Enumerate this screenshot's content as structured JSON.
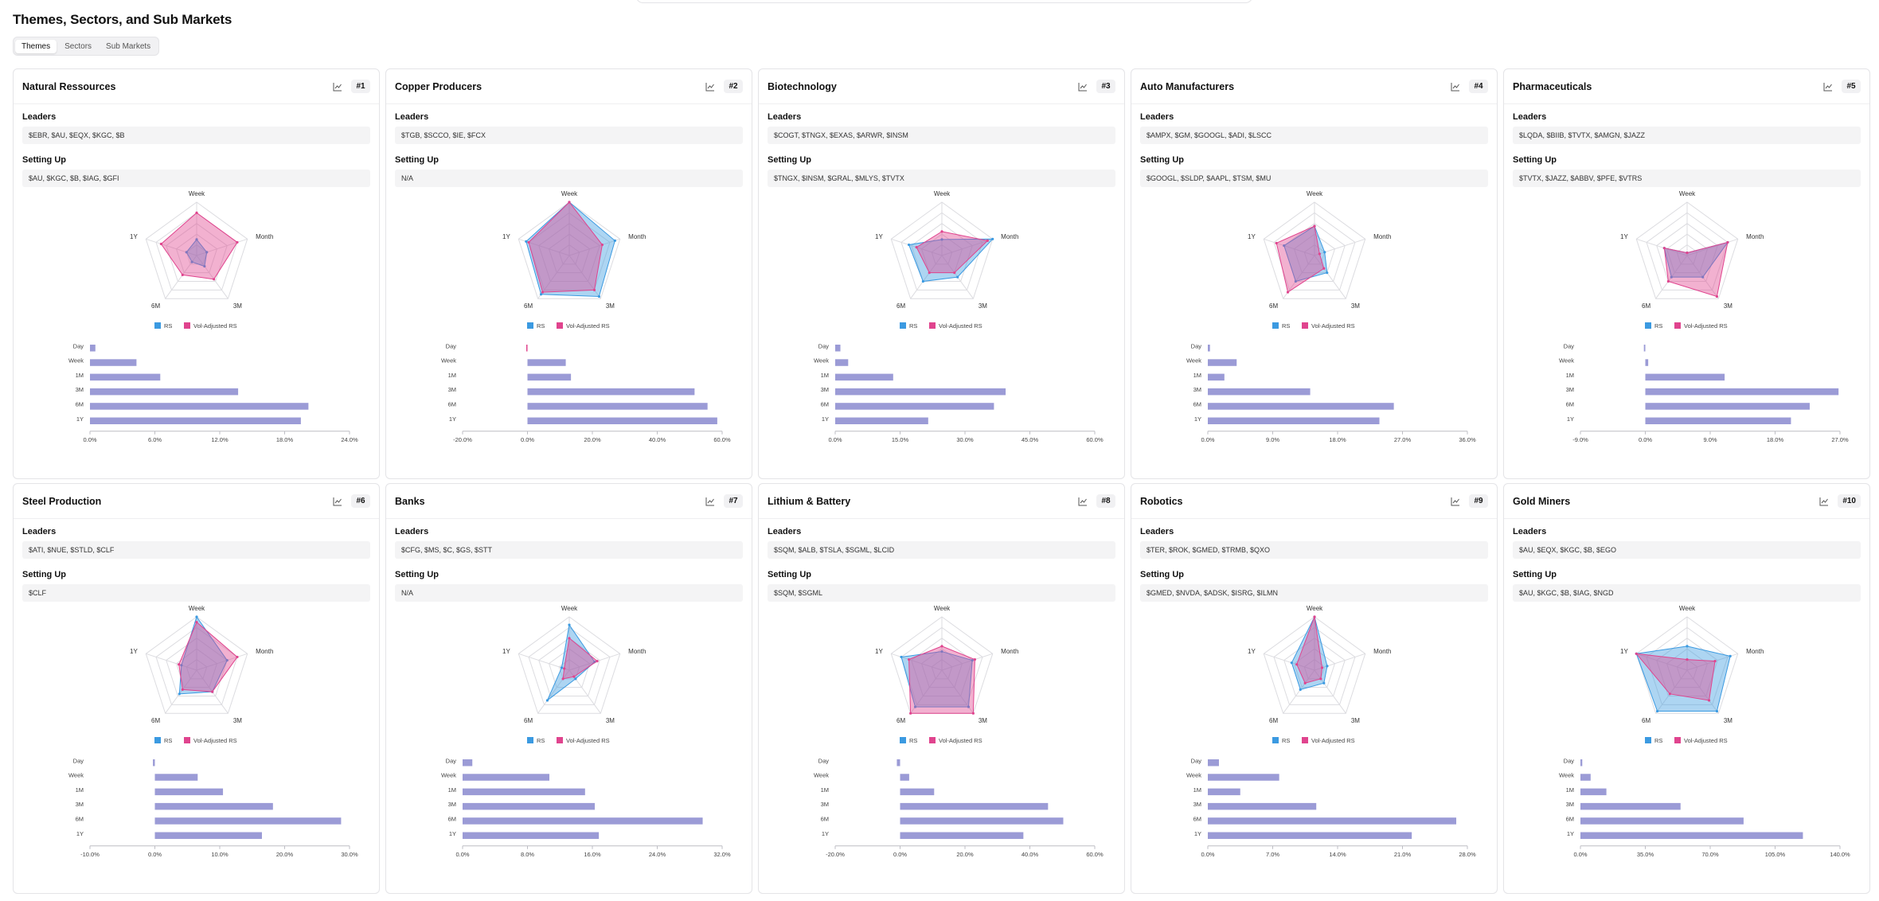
{
  "page": {
    "title": "Themes, Sectors, and Sub Markets"
  },
  "tabs": [
    {
      "label": "Themes",
      "active": true
    },
    {
      "label": "Sectors",
      "active": false
    },
    {
      "label": "Sub Markets",
      "active": false
    }
  ],
  "labels": {
    "leaders": "Leaders",
    "setting_up": "Setting Up"
  },
  "colors": {
    "rs": "#3b9ae1",
    "vol_rs": "#e0448e",
    "bar": "#9b9bd6"
  },
  "radar_axes": [
    "Week",
    "Month",
    "3M",
    "6M",
    "1Y"
  ],
  "legend": {
    "rs": "RS",
    "vol_rs": "Vol-Adjusted RS"
  },
  "bar_categories": [
    "Day",
    "Week",
    "1M",
    "3M",
    "6M",
    "1Y"
  ],
  "cards": [
    {
      "title": "Natural Ressources",
      "rank": "#1",
      "leaders": "$EBR, $AU, $EQX, $KGC, $B",
      "setting_up": "$AU, $KGC, $B, $IAG, $GFI",
      "radar": {
        "rs": [
          0.3,
          0.2,
          0.25,
          0.15,
          0.2
        ],
        "vol": [
          0.8,
          0.8,
          0.55,
          0.45,
          0.7
        ]
      },
      "bars": {
        "values": [
          0.5,
          4.3,
          6.5,
          13.7,
          20.2,
          19.5
        ],
        "ticks": [
          "0.0%",
          "6.0%",
          "12.0%",
          "18.0%",
          "24.0%"
        ],
        "min": 0,
        "max": 24
      }
    },
    {
      "title": "Copper Producers",
      "rank": "#2",
      "leaders": "$TGB, $SCCO, $IE, $FCX",
      "setting_up": "N/A",
      "radar": {
        "rs": [
          1.0,
          0.9,
          0.95,
          0.9,
          0.85
        ],
        "vol": [
          1.0,
          0.65,
          0.8,
          0.85,
          0.8
        ]
      },
      "bars": {
        "values": [
          -0.3,
          11.8,
          13.4,
          51.5,
          55.5,
          58.5
        ],
        "ticks": [
          "-20.0%",
          "0.0%",
          "20.0%",
          "40.0%",
          "60.0%"
        ],
        "min": -20,
        "max": 60
      }
    },
    {
      "title": "Biotechnology",
      "rank": "#3",
      "leaders": "$COGT, $TNGX, $EXAS, $ARWR, $INSM",
      "setting_up": "$TNGX, $INSM, $GRAL, $MLYS, $TVTX",
      "radar": {
        "rs": [
          0.3,
          1.0,
          0.5,
          0.6,
          0.65
        ],
        "vol": [
          0.45,
          0.9,
          0.4,
          0.4,
          0.5
        ]
      },
      "bars": {
        "values": [
          1.2,
          3.0,
          13.4,
          39.4,
          36.7,
          21.5
        ],
        "ticks": [
          "0.0%",
          "15.0%",
          "30.0%",
          "45.0%",
          "60.0%"
        ],
        "min": 0,
        "max": 60
      }
    },
    {
      "title": "Auto Manufacturers",
      "rank": "#4",
      "leaders": "$AMPX, $GM, $GOOGL, $ADI, $LSCC",
      "setting_up": "$GOOGL, $SLDP, $AAPL, $TSM, $MU",
      "radar": {
        "rs": [
          0.55,
          0.2,
          0.4,
          0.6,
          0.6
        ],
        "vol": [
          0.55,
          0.1,
          0.3,
          0.85,
          0.75
        ]
      },
      "bars": {
        "values": [
          0.3,
          4.0,
          2.3,
          14.2,
          25.8,
          23.8
        ],
        "ticks": [
          "0.0%",
          "9.0%",
          "18.0%",
          "27.0%",
          "36.0%"
        ],
        "min": 0,
        "max": 36
      }
    },
    {
      "title": "Pharmaceuticals",
      "rank": "#5",
      "leaders": "$LQDA, $BIIB, $TVTX, $AMGN, $JAZZ",
      "setting_up": "$TVTX, $JAZZ, $ABBV, $PFE, $VTRS",
      "radar": {
        "rs": [
          0.05,
          0.8,
          0.5,
          0.5,
          0.45
        ],
        "vol": [
          0.05,
          0.8,
          0.95,
          0.6,
          0.45
        ]
      },
      "bars": {
        "values": [
          -0.2,
          0.4,
          11.0,
          26.8,
          22.8,
          20.2
        ],
        "ticks": [
          "-9.0%",
          "0.0%",
          "9.0%",
          "18.0%",
          "27.0%"
        ],
        "min": -9,
        "max": 27
      }
    },
    {
      "title": "Steel Production",
      "rank": "#6",
      "leaders": "$ATI, $NUE, $STLD, $CLF",
      "setting_up": "$CLF",
      "radar": {
        "rs": [
          1.0,
          0.6,
          0.5,
          0.55,
          0.3
        ],
        "vol": [
          0.9,
          0.8,
          0.5,
          0.45,
          0.35
        ]
      },
      "bars": {
        "values": [
          -0.3,
          6.6,
          10.5,
          18.2,
          28.7,
          16.5
        ],
        "ticks": [
          "-10.0%",
          "0.0%",
          "10.0%",
          "20.0%",
          "30.0%"
        ],
        "min": -10,
        "max": 30
      }
    },
    {
      "title": "Banks",
      "rank": "#7",
      "leaders": "$CFG, $MS, $C, $GS, $STT",
      "setting_up": "N/A",
      "radar": {
        "rs": [
          0.85,
          0.5,
          0.2,
          0.7,
          0.15
        ],
        "vol": [
          0.6,
          0.55,
          0.15,
          0.2,
          0.1
        ]
      },
      "bars": {
        "values": [
          1.2,
          10.7,
          15.1,
          16.3,
          29.6,
          16.8
        ],
        "ticks": [
          "0.0%",
          "8.0%",
          "16.0%",
          "24.0%",
          "32.0%"
        ],
        "min": 0,
        "max": 32
      }
    },
    {
      "title": "Lithium & Battery",
      "rank": "#8",
      "leaders": "$SQM, $ALB, $TSLA, $SGML, $LCID",
      "setting_up": "$SQM, $SGML",
      "radar": {
        "rs": [
          0.35,
          0.6,
          0.85,
          0.85,
          0.8
        ],
        "vol": [
          0.45,
          0.65,
          1.0,
          1.0,
          0.65
        ]
      },
      "bars": {
        "values": [
          -1.0,
          2.8,
          10.5,
          45.6,
          50.3,
          38.0
        ],
        "ticks": [
          "-20.0%",
          "0.0%",
          "20.0%",
          "40.0%",
          "60.0%"
        ],
        "min": -20,
        "max": 60
      }
    },
    {
      "title": "Robotics",
      "rank": "#9",
      "leaders": "$TER, $ROK, $GMED, $TRMB, $QXO",
      "setting_up": "$GMED, $NVDA, $ADSK, $ISRG, $ILMN",
      "radar": {
        "rs": [
          1.0,
          0.25,
          0.3,
          0.45,
          0.45
        ],
        "vol": [
          1.0,
          0.15,
          0.2,
          0.3,
          0.35
        ]
      },
      "bars": {
        "values": [
          1.2,
          7.7,
          3.5,
          11.7,
          26.8,
          22.0
        ],
        "ticks": [
          "0.0%",
          "7.0%",
          "14.0%",
          "21.0%",
          "28.0%"
        ],
        "min": 0,
        "max": 28
      }
    },
    {
      "title": "Gold Miners",
      "rank": "#10",
      "leaders": "$AU, $EQX, $KGC, $B, $EGO",
      "setting_up": "$AU, $KGC, $B, $IAG, $NGD",
      "radar": {
        "rs": [
          0.45,
          0.85,
          0.95,
          0.95,
          1.0
        ],
        "vol": [
          0.2,
          0.55,
          0.7,
          0.55,
          1.0
        ]
      },
      "bars": {
        "values": [
          1.0,
          5.5,
          14.0,
          54.0,
          88.0,
          120.0
        ],
        "ticks": [
          "0.0%",
          "35.0%",
          "70.0%",
          "105.0%",
          "140.0%"
        ],
        "min": 0,
        "max": 140
      }
    }
  ]
}
